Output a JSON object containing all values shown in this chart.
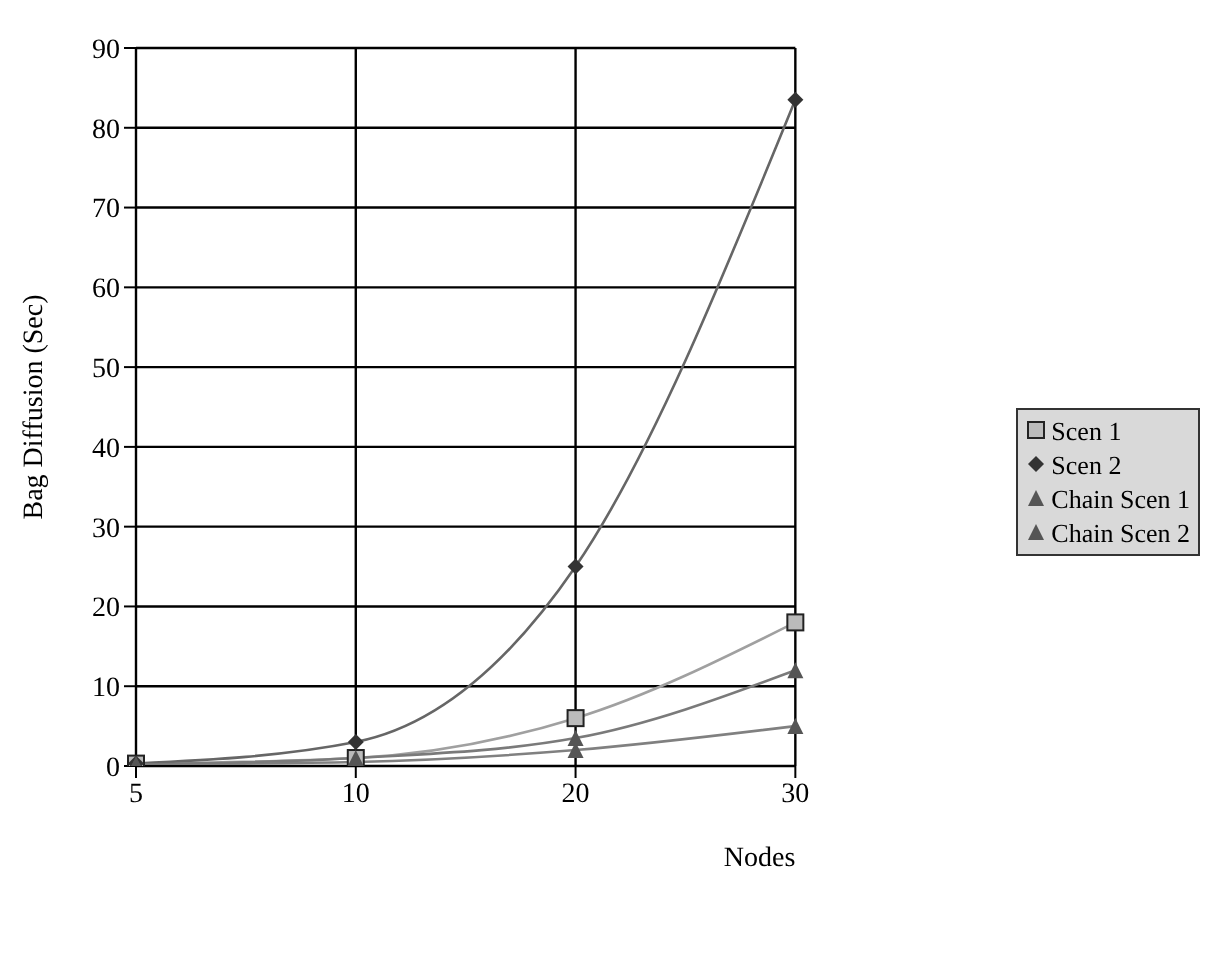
{
  "chart_data": {
    "type": "line",
    "xlabel": "Nodes",
    "ylabel": "Bag Diffusion (Sec)",
    "categories": [
      "5",
      "10",
      "20",
      "30"
    ],
    "series": [
      {
        "name": "Scen 1",
        "color": "#a0a0a0",
        "marker": "square",
        "values": [
          0.3,
          1,
          6,
          18
        ]
      },
      {
        "name": "Scen 2",
        "color": "#666666",
        "marker": "diamond",
        "values": [
          0.3,
          3,
          25,
          83.5
        ]
      },
      {
        "name": "Chain Scen 1",
        "color": "#808080",
        "marker": "triangle",
        "values": [
          0.2,
          0.5,
          2,
          5
        ]
      },
      {
        "name": "Chain Scen 2",
        "color": "#7a7a7a",
        "marker": "triangle",
        "values": [
          0.2,
          1,
          3.5,
          12
        ]
      }
    ],
    "ylim": [
      0,
      90
    ],
    "yticks": [
      0,
      10,
      20,
      30,
      40,
      50,
      60,
      70,
      80,
      90
    ],
    "grid": true,
    "legend": "right",
    "line_style": "solid"
  }
}
